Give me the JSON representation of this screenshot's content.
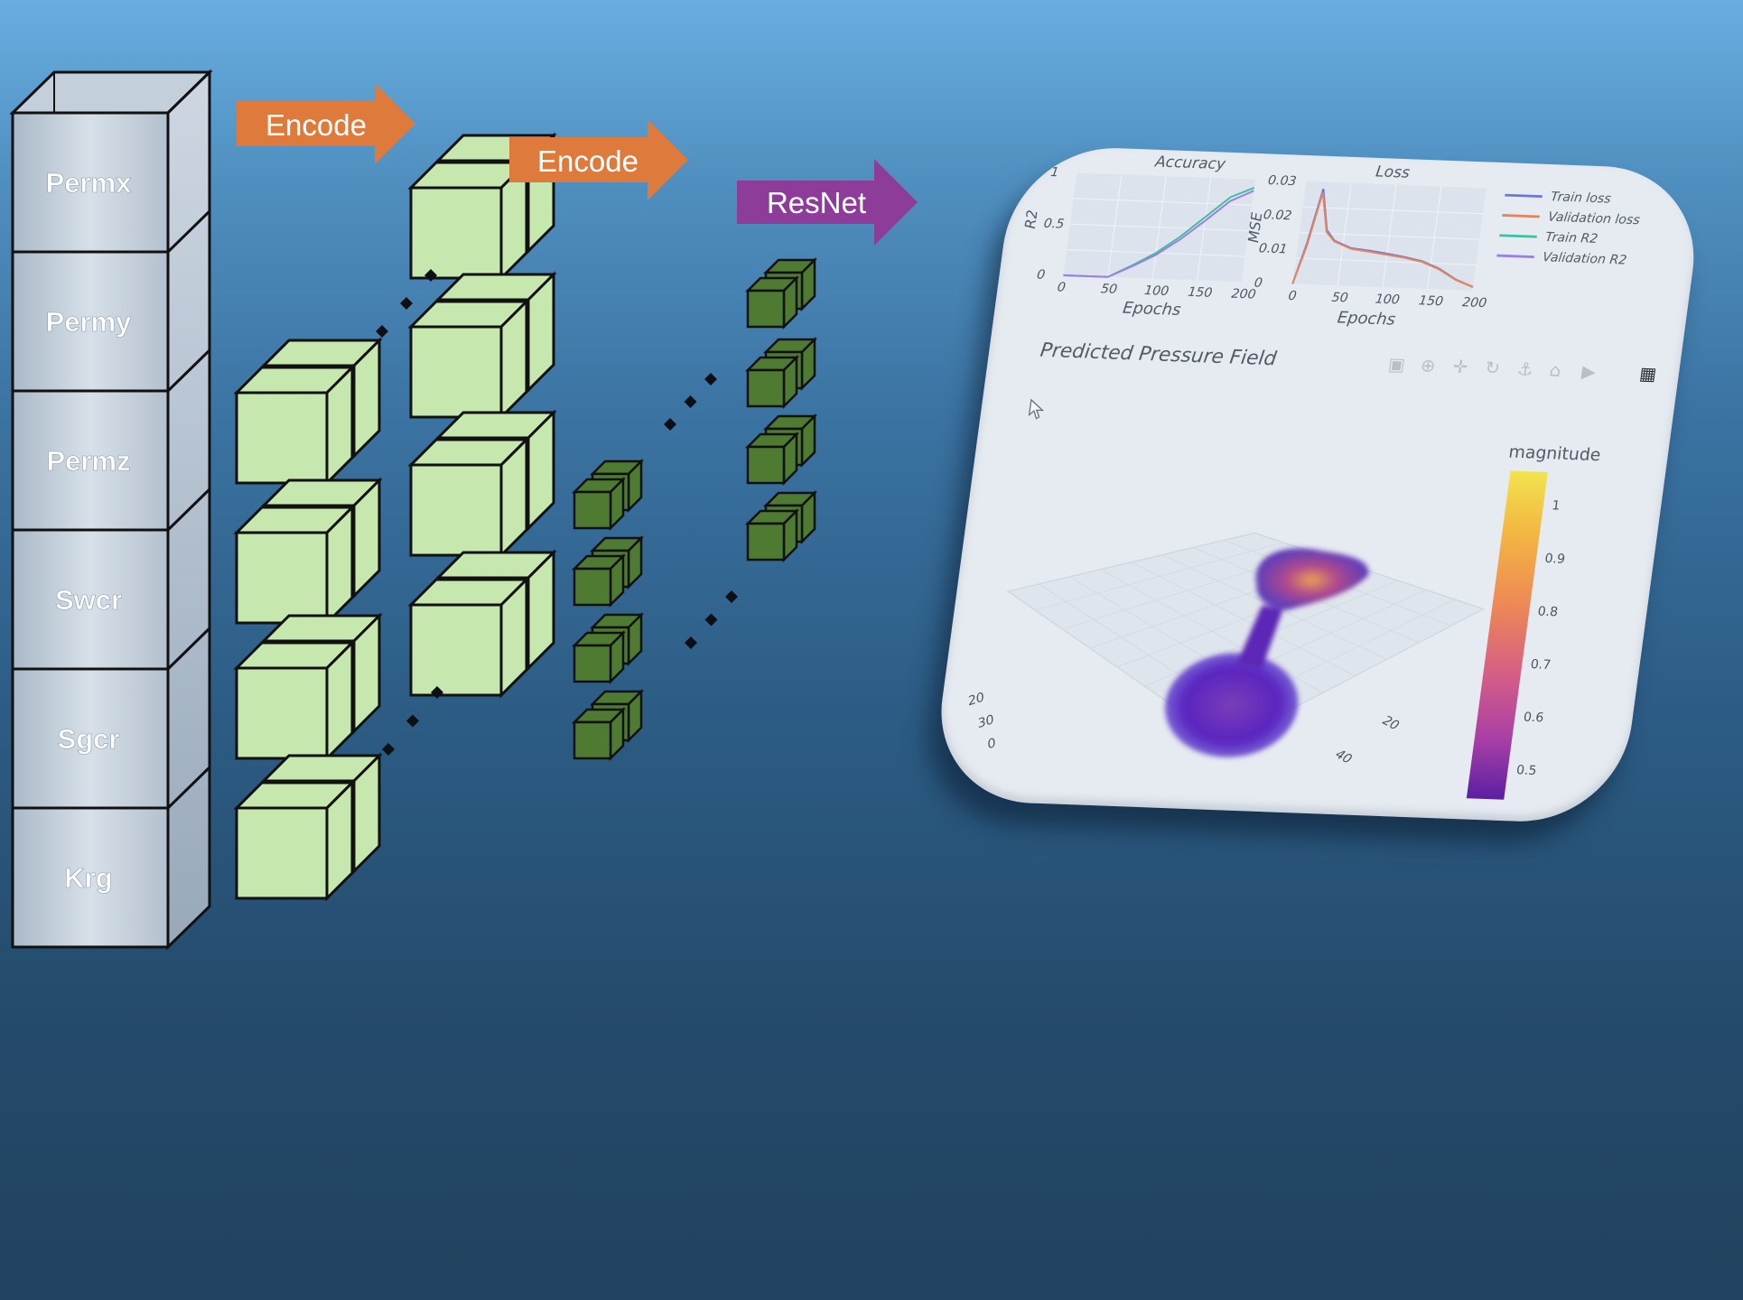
{
  "input_stack": {
    "labels": [
      "Permx",
      "Permy",
      "Permz",
      "Swcr",
      "Sgcr",
      "Krg"
    ]
  },
  "arrows": {
    "encode_1": "Encode",
    "encode_2": "Encode",
    "resnet": "ResNet"
  },
  "colors": {
    "encode_arrow": "#de7a3c",
    "resnet_arrow": "#8d3c9a",
    "cube_light": "#c6e8ae",
    "cube_dark": "#4e7a32"
  },
  "dashboard": {
    "accuracy_chart": {
      "title": "Accuracy",
      "ylabel": "R2",
      "xlabel": "Epochs",
      "x_ticks": [
        "0",
        "50",
        "100",
        "150",
        "200"
      ],
      "y_ticks": [
        "0",
        "0.5",
        "1"
      ]
    },
    "loss_chart": {
      "title": "Loss",
      "ylabel": "MSE",
      "xlabel": "Epochs",
      "x_ticks": [
        "0",
        "50",
        "100",
        "150",
        "200"
      ],
      "y_ticks": [
        "0",
        "0.01",
        "0.02",
        "0.03"
      ]
    },
    "legend": [
      {
        "label": "Train loss",
        "color": "#6b77d8"
      },
      {
        "label": "Validation loss",
        "color": "#e3845e"
      },
      {
        "label": "Train R2",
        "color": "#3fbfa2"
      },
      {
        "label": "Validation R2",
        "color": "#9b7ee8"
      }
    ],
    "plot_title": "Predicted Pressure Field",
    "colorbar": {
      "title": "magnitude",
      "ticks": [
        "1",
        "0.9",
        "0.8",
        "0.7",
        "0.6",
        "0.5"
      ]
    },
    "axis_ticks_left": [
      "20",
      "30",
      "0"
    ],
    "axis_ticks_right": [
      "20",
      "40"
    ],
    "toolbar_icons": [
      "camera-icon",
      "zoom-icon",
      "pan-icon",
      "rotate-icon",
      "orbit-icon",
      "home-icon",
      "video-icon",
      "plotly-logo-icon"
    ]
  },
  "chart_data": [
    {
      "type": "line",
      "title": "Accuracy",
      "xlabel": "Epochs",
      "ylabel": "R2",
      "xlim": [
        0,
        200
      ],
      "ylim": [
        0,
        1
      ],
      "x": [
        0,
        25,
        50,
        75,
        100,
        125,
        150,
        175,
        200
      ],
      "series": [
        {
          "name": "Train R2",
          "values": [
            0,
            0,
            0,
            0.12,
            0.25,
            0.42,
            0.62,
            0.82,
            0.92
          ]
        },
        {
          "name": "Validation R2",
          "values": [
            0,
            0,
            0,
            0.11,
            0.23,
            0.39,
            0.58,
            0.78,
            0.89
          ]
        }
      ]
    },
    {
      "type": "line",
      "title": "Loss",
      "xlabel": "Epochs",
      "ylabel": "MSE",
      "xlim": [
        0,
        200
      ],
      "ylim": [
        0,
        0.03
      ],
      "x": [
        0,
        10,
        20,
        30,
        40,
        60,
        80,
        100,
        120,
        140,
        160,
        180,
        200
      ],
      "series": [
        {
          "name": "Train loss",
          "values": [
            0,
            0.012,
            0.028,
            0.016,
            0.013,
            0.011,
            0.0105,
            0.0098,
            0.009,
            0.008,
            0.006,
            0.003,
            0.001
          ]
        },
        {
          "name": "Validation loss",
          "values": [
            0,
            0.011,
            0.027,
            0.0155,
            0.0128,
            0.0108,
            0.0102,
            0.0095,
            0.0088,
            0.0078,
            0.0058,
            0.0029,
            0.001
          ]
        }
      ]
    }
  ]
}
